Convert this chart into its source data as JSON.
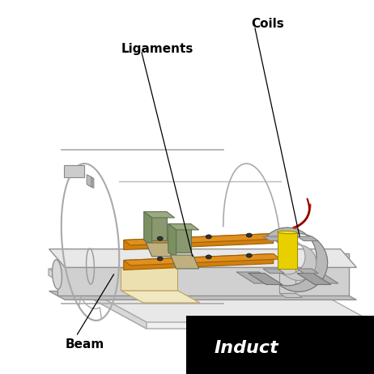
{
  "background_color": "#ffffff",
  "label_beam": "Beam",
  "label_ligaments": "Ligaments",
  "label_coils": "Coils",
  "label_induct": "Induct",
  "label_color": "#000000",
  "banner_bg": "#000000",
  "banner_text_color": "#ffffff",
  "cylinder_outline": "#888888",
  "beam_color_top": "#e8e8e8",
  "beam_color_side": "#c0c0c0",
  "ligament_color": "#d08010",
  "ligament_edge": "#a06000",
  "platform_color": "#e8e8e8",
  "platform_edge": "#aaaaaa",
  "coil_gray": "#b0b0b0",
  "coil_gray_dark": "#888888",
  "coil_yellow": "#e8d000",
  "coil_shaft": "#c8c8c8",
  "green_part": "#8a9870",
  "green_dark": "#607050",
  "cream_color": "#f0e8c0",
  "red_wire": "#cc2200",
  "dot_color": "#333333"
}
